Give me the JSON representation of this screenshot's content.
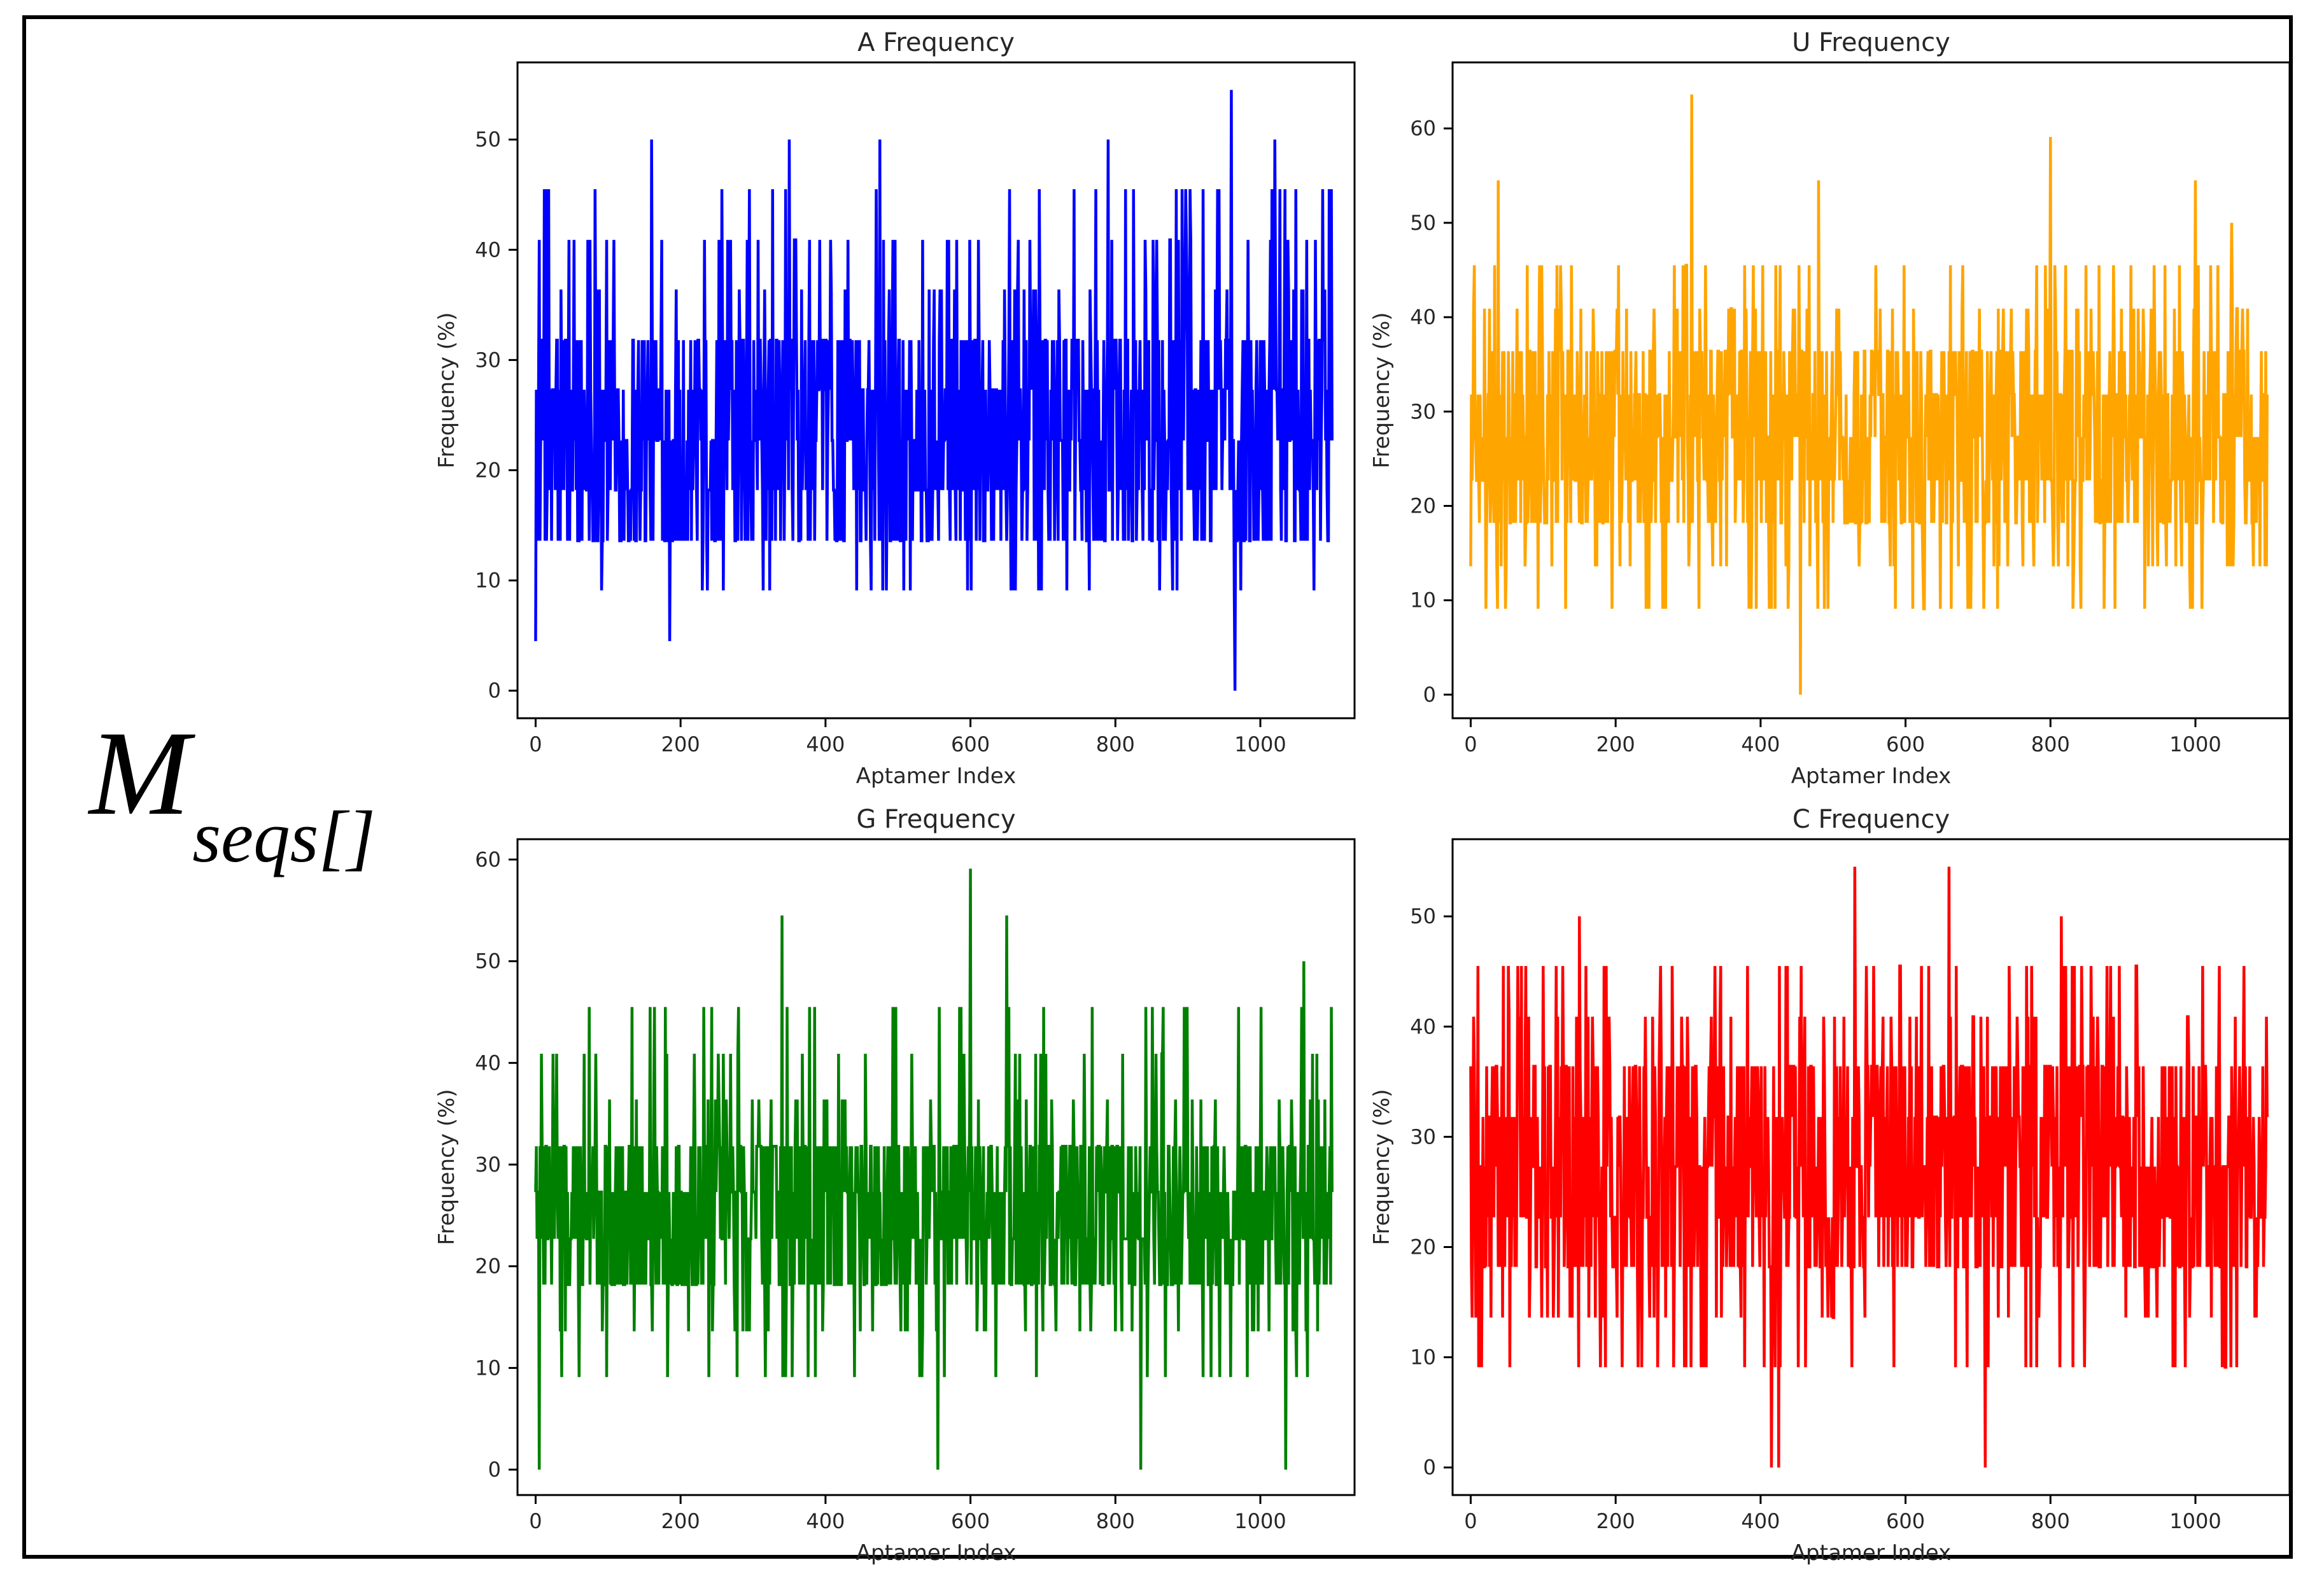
{
  "figure_label": {
    "main": "M",
    "subscript": "seqs[]"
  },
  "chart_data": [
    {
      "type": "line",
      "title": "A Frequency",
      "xlabel": "Aptamer Index",
      "ylabel": "Frequency (%)",
      "color": "#0000ff",
      "xlim": [
        -25,
        1130
      ],
      "ylim": [
        -2.5,
        57
      ],
      "xticks": [
        0,
        200,
        400,
        600,
        800,
        1000
      ],
      "yticks": [
        0,
        10,
        20,
        30,
        40,
        50
      ],
      "n_points": 1100,
      "levels": [
        13.6,
        18.2,
        22.7,
        27.3,
        31.8
      ],
      "occasional_levels": [
        9.1,
        36.4,
        40.9,
        45.5
      ],
      "peaks": [
        {
          "x": 0,
          "y": 4.5
        },
        {
          "x": 12,
          "y": 45.5
        },
        {
          "x": 160,
          "y": 50.0
        },
        {
          "x": 185,
          "y": 4.5
        },
        {
          "x": 350,
          "y": 50.0
        },
        {
          "x": 475,
          "y": 50.0
        },
        {
          "x": 790,
          "y": 50.0
        },
        {
          "x": 960,
          "y": 54.5
        },
        {
          "x": 965,
          "y": 0.0
        },
        {
          "x": 1020,
          "y": 50.0
        },
        {
          "x": 1095,
          "y": 45.5
        }
      ]
    },
    {
      "type": "line",
      "title": "U Frequency",
      "xlabel": "Aptamer Index",
      "ylabel": "Frequency (%)",
      "color": "#ffa500",
      "xlim": [
        -25,
        1130
      ],
      "ylim": [
        -2.5,
        67
      ],
      "xticks": [
        0,
        200,
        400,
        600,
        800,
        1000
      ],
      "yticks": [
        0,
        10,
        20,
        30,
        40,
        50,
        60
      ],
      "n_points": 1100,
      "levels": [
        18.2,
        22.7,
        27.3,
        31.8,
        36.4
      ],
      "occasional_levels": [
        9.1,
        13.6,
        40.9,
        45.5
      ],
      "peaks": [
        {
          "x": 38,
          "y": 54.5
        },
        {
          "x": 305,
          "y": 63.6
        },
        {
          "x": 455,
          "y": 0.0
        },
        {
          "x": 480,
          "y": 54.5
        },
        {
          "x": 800,
          "y": 59.1
        },
        {
          "x": 1000,
          "y": 54.5
        },
        {
          "x": 1050,
          "y": 50.0
        }
      ]
    },
    {
      "type": "line",
      "title": "G Frequency",
      "xlabel": "Aptamer Index",
      "ylabel": "Frequency (%)",
      "color": "#008000",
      "xlim": [
        -25,
        1130
      ],
      "ylim": [
        -2.5,
        62
      ],
      "xticks": [
        0,
        200,
        400,
        600,
        800,
        1000
      ],
      "yticks": [
        0,
        10,
        20,
        30,
        40,
        50,
        60
      ],
      "n_points": 1100,
      "levels": [
        18.2,
        22.7,
        27.3,
        31.8
      ],
      "occasional_levels": [
        9.1,
        13.6,
        36.4,
        40.9,
        45.5
      ],
      "peaks": [
        {
          "x": 5,
          "y": 0.0
        },
        {
          "x": 340,
          "y": 54.5
        },
        {
          "x": 555,
          "y": 0.0
        },
        {
          "x": 600,
          "y": 59.1
        },
        {
          "x": 650,
          "y": 54.5
        },
        {
          "x": 835,
          "y": 0.0
        },
        {
          "x": 1035,
          "y": 0.0
        },
        {
          "x": 1060,
          "y": 50.0
        }
      ]
    },
    {
      "type": "line",
      "title": "C Frequency",
      "xlabel": "Aptamer Index",
      "ylabel": "Frequency (%)",
      "color": "#ff0000",
      "xlim": [
        -25,
        1130
      ],
      "ylim": [
        -2.5,
        57
      ],
      "xticks": [
        0,
        200,
        400,
        600,
        800,
        1000
      ],
      "yticks": [
        0,
        10,
        20,
        30,
        40,
        50
      ],
      "n_points": 1100,
      "levels": [
        18.2,
        22.7,
        27.3,
        31.8,
        36.4
      ],
      "occasional_levels": [
        9.1,
        13.6,
        40.9,
        45.5
      ],
      "peaks": [
        {
          "x": 150,
          "y": 50.0
        },
        {
          "x": 415,
          "y": 0.0
        },
        {
          "x": 425,
          "y": 0.0
        },
        {
          "x": 530,
          "y": 54.5
        },
        {
          "x": 660,
          "y": 54.5
        },
        {
          "x": 710,
          "y": 0.0
        },
        {
          "x": 815,
          "y": 50.0
        }
      ]
    }
  ]
}
